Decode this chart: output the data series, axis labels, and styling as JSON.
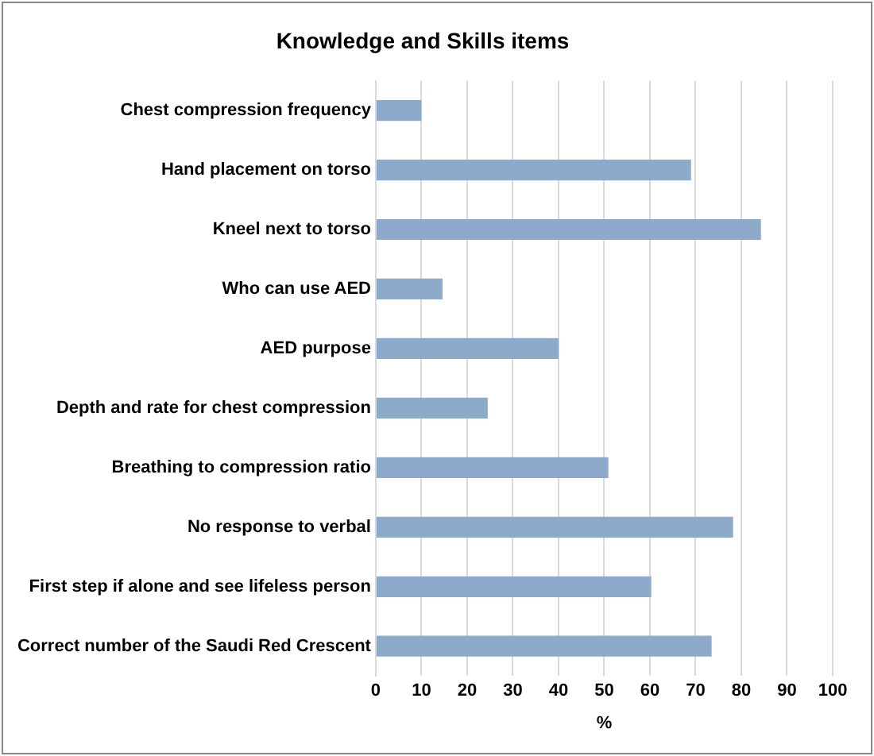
{
  "chart_data": {
    "type": "bar",
    "orientation": "horizontal",
    "title": "Knowledge and Skills items",
    "xlabel": "%",
    "categories": [
      "Chest compression frequency",
      "Hand placement on torso",
      "Kneel next to torso",
      "Who can use AED",
      "AED purpose",
      "Depth and rate for chest compression",
      "Breathing to compression ratio",
      "No response to verbal",
      "First step if alone and see lifeless person",
      "Correct number of the Saudi Red Crescent"
    ],
    "values": [
      10,
      69,
      84.3,
      14.6,
      40,
      24.5,
      50.9,
      78.2,
      60.3,
      73.5
    ],
    "color": "#8eaacb",
    "xlim": [
      0,
      100
    ],
    "xticks": [
      0,
      10,
      20,
      30,
      40,
      50,
      60,
      70,
      80,
      90,
      100
    ],
    "grid": "x",
    "legend": false
  }
}
